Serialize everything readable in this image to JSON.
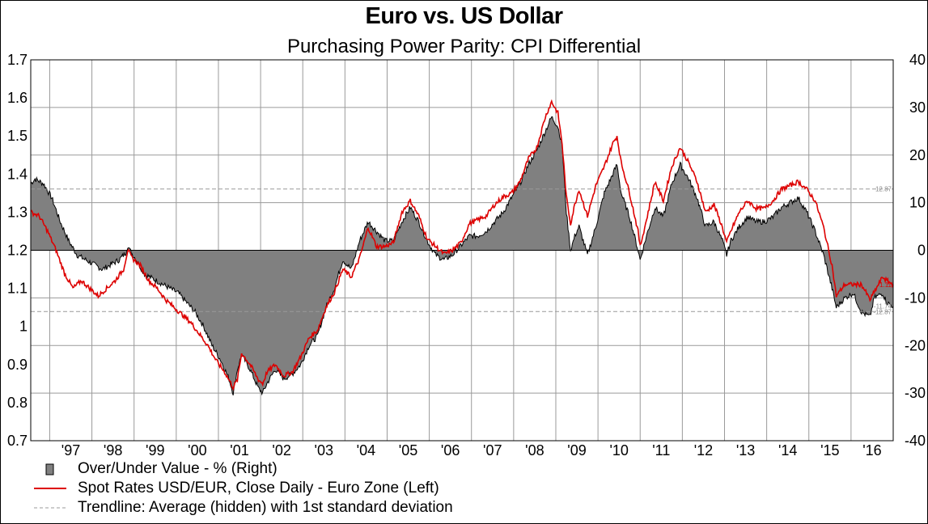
{
  "chart_data": {
    "type": "area+line",
    "title": "Euro vs. US Dollar",
    "subtitle": "Purchasing Power Parity: CPI Differential",
    "left_axis": {
      "ylim": [
        0.7,
        1.7
      ],
      "ticks": [
        "0.7",
        "0.8",
        "0.9",
        "1",
        "1.1",
        "1.2",
        "1.3",
        "1.4",
        "1.5",
        "1.6",
        "1.7"
      ]
    },
    "right_axis": {
      "ylim": [
        -40,
        40
      ],
      "ticks": [
        "-40",
        "-30",
        "-20",
        "-10",
        "0",
        "10",
        "20",
        "30",
        "40"
      ]
    },
    "x_axis": {
      "xlim": [
        1996.0,
        2016.45
      ],
      "tick_labels": [
        "'97",
        "'98",
        "'99",
        "'00",
        "'01",
        "'02",
        "'03",
        "'04",
        "'05",
        "'06",
        "'07",
        "'08",
        "'09",
        "'10",
        "'11",
        "'12",
        "'13",
        "'14",
        "'15",
        "'16"
      ]
    },
    "grid": true,
    "legend_position": "bottom",
    "series": [
      {
        "name": "Over/Under Value - %  (Right)",
        "axis": "right",
        "style": "area",
        "color": "#808080",
        "points": [
          [
            1996.0,
            14
          ],
          [
            1996.1,
            15
          ],
          [
            1996.3,
            14
          ],
          [
            1996.5,
            11
          ],
          [
            1996.7,
            6
          ],
          [
            1996.9,
            2
          ],
          [
            1997.1,
            -1
          ],
          [
            1997.3,
            -2
          ],
          [
            1997.5,
            -3
          ],
          [
            1997.7,
            -4
          ],
          [
            1997.9,
            -3
          ],
          [
            1998.1,
            -2
          ],
          [
            1998.25,
            -0.5
          ],
          [
            1998.3,
            1
          ],
          [
            1998.35,
            0
          ],
          [
            1998.5,
            -2
          ],
          [
            1998.7,
            -5
          ],
          [
            1998.9,
            -6
          ],
          [
            1999.1,
            -7
          ],
          [
            1999.3,
            -8
          ],
          [
            1999.5,
            -9
          ],
          [
            1999.7,
            -11
          ],
          [
            1999.9,
            -13
          ],
          [
            2000.1,
            -16
          ],
          [
            2000.3,
            -20
          ],
          [
            2000.5,
            -23
          ],
          [
            2000.7,
            -27
          ],
          [
            2000.8,
            -30
          ],
          [
            2000.9,
            -25
          ],
          [
            2001.0,
            -22
          ],
          [
            2001.2,
            -25
          ],
          [
            2001.4,
            -29
          ],
          [
            2001.5,
            -30
          ],
          [
            2001.6,
            -28
          ],
          [
            2001.8,
            -25
          ],
          [
            2002.0,
            -27
          ],
          [
            2002.2,
            -26
          ],
          [
            2002.4,
            -24
          ],
          [
            2002.6,
            -20
          ],
          [
            2002.8,
            -18
          ],
          [
            2003.0,
            -12
          ],
          [
            2003.2,
            -8
          ],
          [
            2003.4,
            -2
          ],
          [
            2003.6,
            -4
          ],
          [
            2003.8,
            2
          ],
          [
            2004.0,
            6
          ],
          [
            2004.2,
            4
          ],
          [
            2004.4,
            2
          ],
          [
            2004.6,
            2
          ],
          [
            2004.8,
            6
          ],
          [
            2005.0,
            9
          ],
          [
            2005.2,
            6
          ],
          [
            2005.4,
            2
          ],
          [
            2005.6,
            -1
          ],
          [
            2005.8,
            -2
          ],
          [
            2006.0,
            -1
          ],
          [
            2006.2,
            1
          ],
          [
            2006.4,
            3
          ],
          [
            2006.6,
            3
          ],
          [
            2006.8,
            4
          ],
          [
            2007.0,
            6
          ],
          [
            2007.2,
            8
          ],
          [
            2007.4,
            11
          ],
          [
            2007.6,
            14
          ],
          [
            2007.8,
            18
          ],
          [
            2008.0,
            21
          ],
          [
            2008.2,
            25
          ],
          [
            2008.35,
            28
          ],
          [
            2008.5,
            26
          ],
          [
            2008.6,
            22
          ],
          [
            2008.7,
            8
          ],
          [
            2008.8,
            0
          ],
          [
            2008.9,
            3
          ],
          [
            2009.0,
            5
          ],
          [
            2009.2,
            -1
          ],
          [
            2009.4,
            5
          ],
          [
            2009.6,
            12
          ],
          [
            2009.8,
            16
          ],
          [
            2009.9,
            18
          ],
          [
            2010.0,
            12
          ],
          [
            2010.2,
            7
          ],
          [
            2010.4,
            0
          ],
          [
            2010.45,
            -2
          ],
          [
            2010.6,
            3
          ],
          [
            2010.8,
            9
          ],
          [
            2011.0,
            7
          ],
          [
            2011.2,
            14
          ],
          [
            2011.4,
            18
          ],
          [
            2011.6,
            15
          ],
          [
            2011.8,
            11
          ],
          [
            2012.0,
            5
          ],
          [
            2012.2,
            6
          ],
          [
            2012.4,
            2
          ],
          [
            2012.5,
            -1
          ],
          [
            2012.6,
            2
          ],
          [
            2012.8,
            5
          ],
          [
            2013.0,
            7
          ],
          [
            2013.2,
            6
          ],
          [
            2013.4,
            6
          ],
          [
            2013.6,
            7
          ],
          [
            2013.8,
            9
          ],
          [
            2014.0,
            10
          ],
          [
            2014.2,
            11
          ],
          [
            2014.4,
            8
          ],
          [
            2014.6,
            4
          ],
          [
            2014.8,
            -1
          ],
          [
            2015.0,
            -8
          ],
          [
            2015.1,
            -12
          ],
          [
            2015.3,
            -10
          ],
          [
            2015.5,
            -9
          ],
          [
            2015.7,
            -13
          ],
          [
            2015.9,
            -14
          ],
          [
            2016.0,
            -10
          ],
          [
            2016.2,
            -9
          ],
          [
            2016.3,
            -11
          ],
          [
            2016.45,
            -11.74
          ]
        ]
      },
      {
        "name": "Spot Rates USD/EUR, Close Daily - Euro Zone  (Left)",
        "axis": "left",
        "style": "line",
        "color": "#dd0000",
        "points": [
          [
            1996.0,
            1.3
          ],
          [
            1996.2,
            1.29
          ],
          [
            1996.4,
            1.25
          ],
          [
            1996.6,
            1.2
          ],
          [
            1996.8,
            1.14
          ],
          [
            1997.0,
            1.1
          ],
          [
            1997.2,
            1.12
          ],
          [
            1997.4,
            1.1
          ],
          [
            1997.6,
            1.08
          ],
          [
            1997.8,
            1.1
          ],
          [
            1998.0,
            1.12
          ],
          [
            1998.2,
            1.15
          ],
          [
            1998.3,
            1.2
          ],
          [
            1998.4,
            1.18
          ],
          [
            1998.6,
            1.16
          ],
          [
            1998.8,
            1.12
          ],
          [
            1999.0,
            1.1
          ],
          [
            1999.2,
            1.07
          ],
          [
            1999.4,
            1.05
          ],
          [
            1999.6,
            1.03
          ],
          [
            1999.8,
            1.01
          ],
          [
            2000.0,
            0.98
          ],
          [
            2000.2,
            0.95
          ],
          [
            2000.4,
            0.91
          ],
          [
            2000.6,
            0.88
          ],
          [
            2000.8,
            0.84
          ],
          [
            2000.9,
            0.86
          ],
          [
            2001.0,
            0.93
          ],
          [
            2001.2,
            0.9
          ],
          [
            2001.4,
            0.86
          ],
          [
            2001.5,
            0.85
          ],
          [
            2001.6,
            0.88
          ],
          [
            2001.8,
            0.9
          ],
          [
            2002.0,
            0.87
          ],
          [
            2002.2,
            0.88
          ],
          [
            2002.4,
            0.92
          ],
          [
            2002.6,
            0.97
          ],
          [
            2002.8,
            0.99
          ],
          [
            2003.0,
            1.05
          ],
          [
            2003.2,
            1.09
          ],
          [
            2003.4,
            1.15
          ],
          [
            2003.6,
            1.13
          ],
          [
            2003.8,
            1.18
          ],
          [
            2004.0,
            1.26
          ],
          [
            2004.2,
            1.21
          ],
          [
            2004.4,
            1.21
          ],
          [
            2004.6,
            1.22
          ],
          [
            2004.8,
            1.3
          ],
          [
            2005.0,
            1.33
          ],
          [
            2005.2,
            1.29
          ],
          [
            2005.4,
            1.23
          ],
          [
            2005.6,
            1.21
          ],
          [
            2005.8,
            1.19
          ],
          [
            2006.0,
            1.2
          ],
          [
            2006.2,
            1.22
          ],
          [
            2006.4,
            1.27
          ],
          [
            2006.6,
            1.28
          ],
          [
            2006.8,
            1.29
          ],
          [
            2007.0,
            1.32
          ],
          [
            2007.2,
            1.34
          ],
          [
            2007.4,
            1.35
          ],
          [
            2007.6,
            1.38
          ],
          [
            2007.8,
            1.44
          ],
          [
            2008.0,
            1.47
          ],
          [
            2008.2,
            1.55
          ],
          [
            2008.35,
            1.59
          ],
          [
            2008.5,
            1.56
          ],
          [
            2008.6,
            1.48
          ],
          [
            2008.7,
            1.34
          ],
          [
            2008.8,
            1.27
          ],
          [
            2008.9,
            1.32
          ],
          [
            2009.0,
            1.36
          ],
          [
            2009.2,
            1.29
          ],
          [
            2009.4,
            1.37
          ],
          [
            2009.6,
            1.42
          ],
          [
            2009.8,
            1.48
          ],
          [
            2009.9,
            1.5
          ],
          [
            2010.0,
            1.43
          ],
          [
            2010.2,
            1.35
          ],
          [
            2010.4,
            1.25
          ],
          [
            2010.45,
            1.21
          ],
          [
            2010.6,
            1.28
          ],
          [
            2010.8,
            1.38
          ],
          [
            2011.0,
            1.33
          ],
          [
            2011.2,
            1.42
          ],
          [
            2011.4,
            1.47
          ],
          [
            2011.6,
            1.43
          ],
          [
            2011.8,
            1.38
          ],
          [
            2012.0,
            1.3
          ],
          [
            2012.2,
            1.32
          ],
          [
            2012.4,
            1.26
          ],
          [
            2012.5,
            1.22
          ],
          [
            2012.6,
            1.25
          ],
          [
            2012.8,
            1.3
          ],
          [
            2013.0,
            1.33
          ],
          [
            2013.2,
            1.31
          ],
          [
            2013.4,
            1.31
          ],
          [
            2013.6,
            1.33
          ],
          [
            2013.8,
            1.36
          ],
          [
            2014.0,
            1.37
          ],
          [
            2014.2,
            1.38
          ],
          [
            2014.4,
            1.36
          ],
          [
            2014.6,
            1.33
          ],
          [
            2014.8,
            1.26
          ],
          [
            2015.0,
            1.16
          ],
          [
            2015.1,
            1.08
          ],
          [
            2015.3,
            1.11
          ],
          [
            2015.5,
            1.11
          ],
          [
            2015.7,
            1.11
          ],
          [
            2015.9,
            1.07
          ],
          [
            2016.0,
            1.09
          ],
          [
            2016.2,
            1.13
          ],
          [
            2016.3,
            1.12
          ],
          [
            2016.45,
            1.11
          ]
        ]
      },
      {
        "name": "Trendline: Average (hidden) with 1st standard deviation",
        "axis": "right",
        "style": "dashed",
        "color": "#999999",
        "values": [
          12.87,
          -12.87
        ]
      }
    ],
    "annotations": [
      {
        "text": "12.87",
        "value": 12.87,
        "axis": "right",
        "color": "#888888"
      },
      {
        "text": "-12.87",
        "value": -12.87,
        "axis": "right",
        "color": "#888888"
      },
      {
        "text": "-11.74",
        "value": -11.74,
        "axis": "right",
        "color": "#888888"
      },
      {
        "text": "1.11",
        "value": 1.11,
        "axis": "left",
        "color": "#dd0000"
      }
    ]
  }
}
